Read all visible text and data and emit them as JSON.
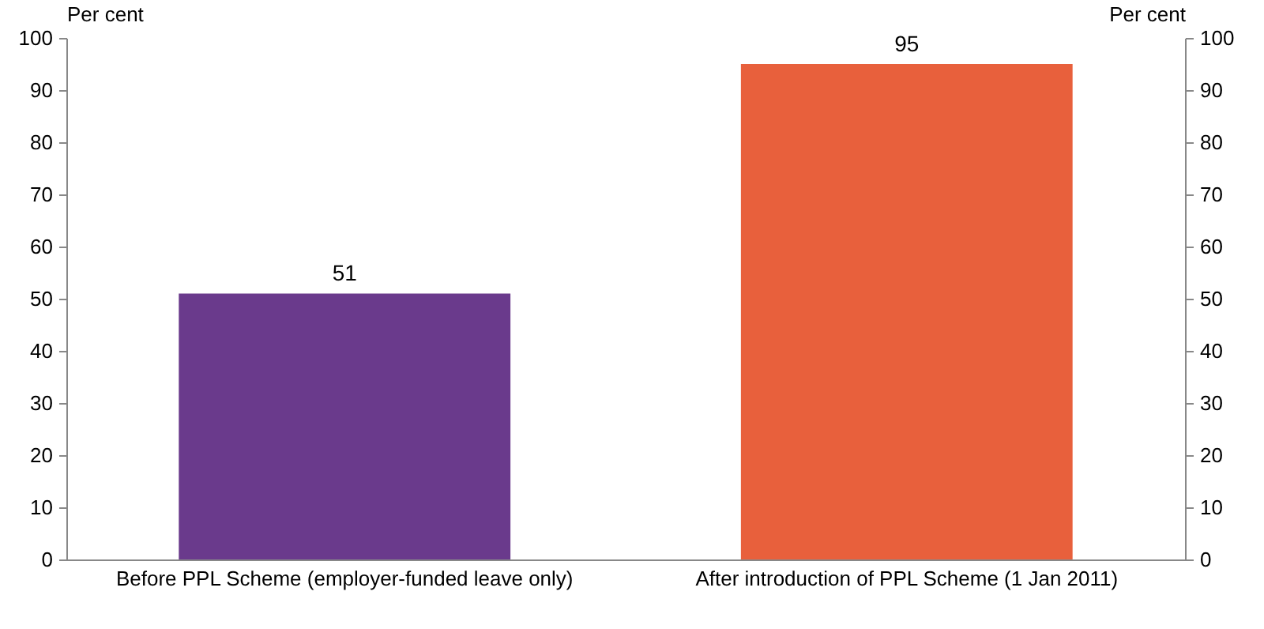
{
  "chart_data": {
    "type": "bar",
    "categories": [
      "Before PPL Scheme (employer-funded leave only)",
      "After introduction of PPL Scheme (1 Jan 2011)"
    ],
    "values": [
      51,
      95
    ],
    "colors": [
      "#6a3a8c",
      "#e8603c"
    ],
    "ylabel": "Per cent",
    "y2label": "Per cent",
    "ylim": [
      0,
      100
    ],
    "yticks": [
      0,
      10,
      20,
      30,
      40,
      50,
      60,
      70,
      80,
      90,
      100
    ],
    "y2lim": [
      0,
      100
    ],
    "y2ticks": [
      0,
      10,
      20,
      30,
      40,
      50,
      60,
      70,
      80,
      90,
      100
    ],
    "data_labels": true,
    "grid": false
  }
}
